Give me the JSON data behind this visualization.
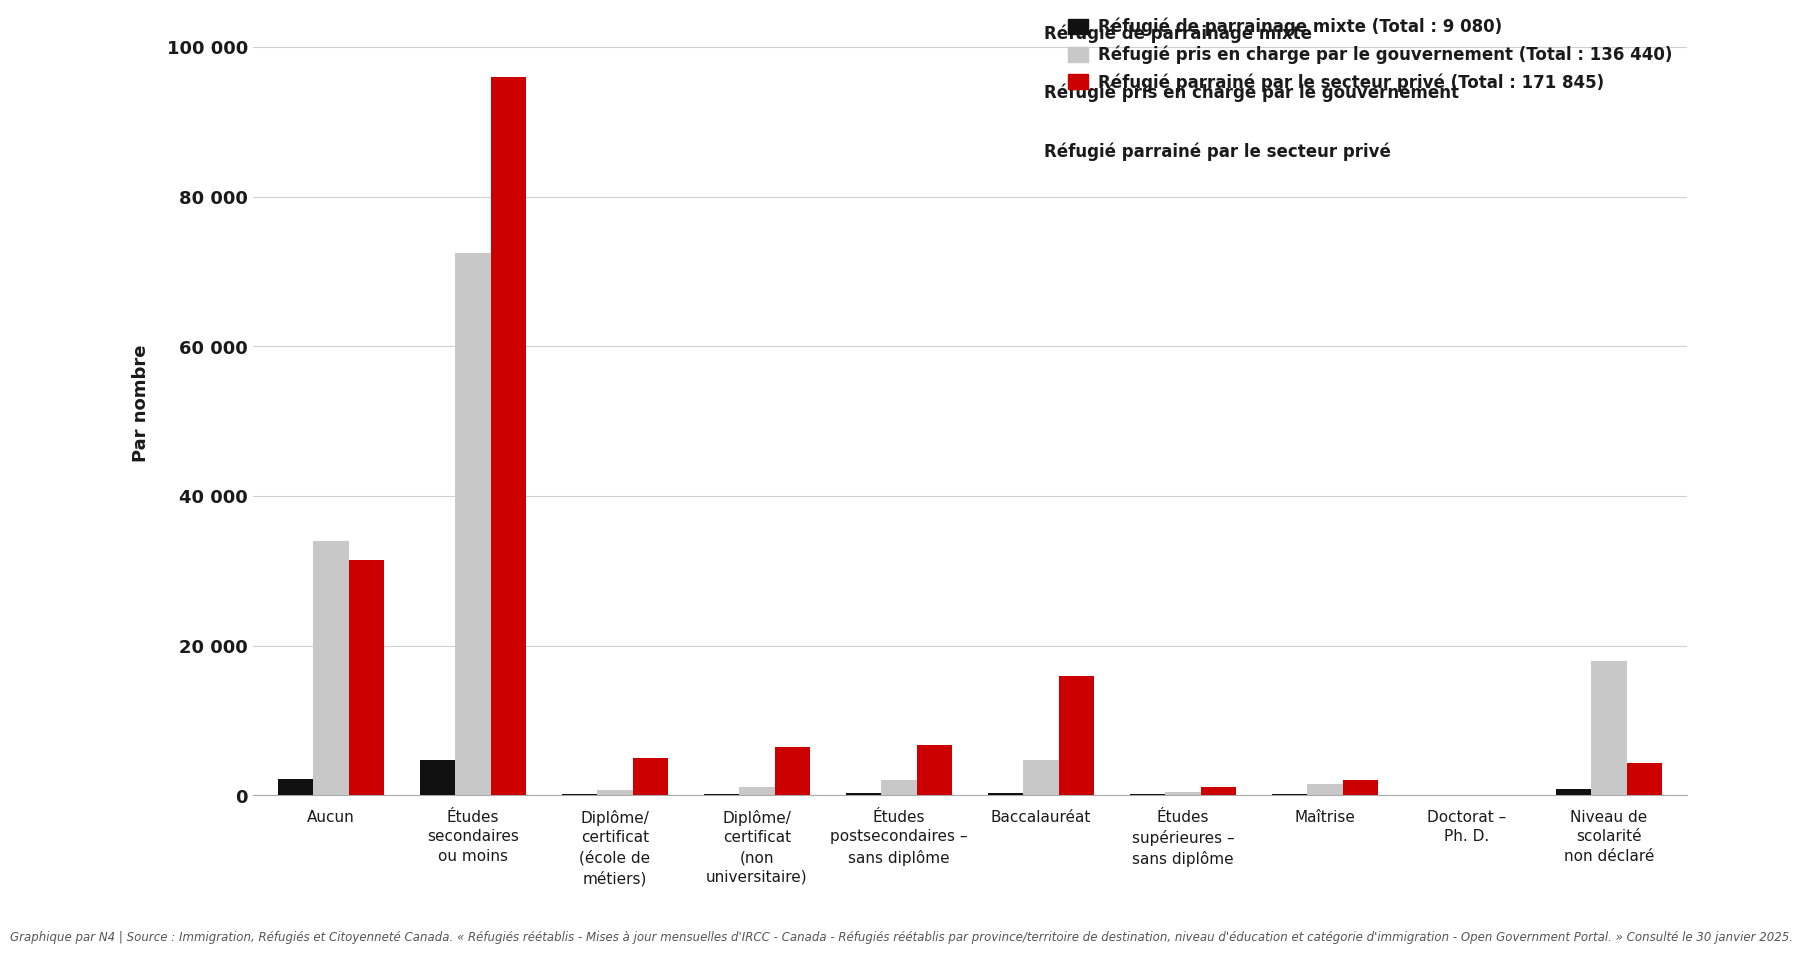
{
  "categories": [
    "Aucun",
    "Études\nsecondaires\nou moins",
    "Diplôme/\ncertificat\n(école de\nmétiers)",
    "Diplôme/\ncertificat\n(non\nuniversitaire)",
    "Études\npostsecondaires –\nsans diplôme",
    "Baccalauréat",
    "Études\nsupérieures –\nsans diplôme",
    "Maîtrise",
    "Doctorat –\nPh. D.",
    "Niveau de\nscolarité\nnon déclaré"
  ],
  "series": [
    {
      "label_bold": "Réfugié de parrainage mixte",
      "label_normal": " (Total : 9 080)",
      "color": "#111111",
      "values": [
        2200,
        4700,
        150,
        200,
        300,
        300,
        150,
        200,
        0,
        900
      ]
    },
    {
      "label_bold": "Réfugié pris en charge par le gouvernement",
      "label_normal": " (Total : 136 440)",
      "color": "#c8c8c8",
      "values": [
        34000,
        72500,
        700,
        1100,
        2000,
        4700,
        500,
        1500,
        0,
        18000
      ]
    },
    {
      "label_bold": "Réfugié parrainé par le secteur privé",
      "label_normal": " (Total : 171 845)",
      "color": "#cc0000",
      "values": [
        31500,
        96000,
        5000,
        6500,
        6800,
        16000,
        1100,
        2000,
        0,
        4300
      ]
    }
  ],
  "ylabel": "Par nombre",
  "ylim": [
    0,
    105000
  ],
  "yticks": [
    0,
    20000,
    40000,
    60000,
    80000,
    100000
  ],
  "ytick_labels": [
    "0",
    "20 000",
    "40 000",
    "60 000",
    "80 000",
    "100 000"
  ],
  "background_color": "#ffffff",
  "grid_color": "#d0d0d0",
  "footnote": "Graphique par N4 | Source : Immigration, Réfugiés et Citoyenneté Canada. « Réfugiés réétablis - Mises à jour mensuelles d'IRCC - Canada - Réfugiés réétablis par province/territoire de destination, niveau d'éducation et catégorie d'immigration - Open Government Portal. » Consulté le 30 janvier 2025."
}
